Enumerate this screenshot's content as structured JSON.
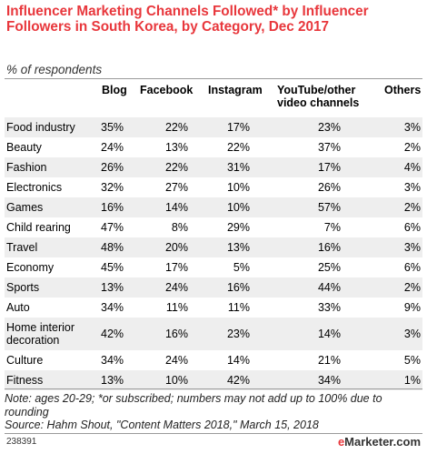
{
  "chart_data": {
    "type": "table",
    "title": "Influencer Marketing Channels Followed* by Influencer Followers in South Korea, by Category, Dec 2017",
    "subtitle": "% of respondents",
    "columns": [
      "Blog",
      "Facebook",
      "Instagram",
      "YouTube/other video channels",
      "Others"
    ],
    "rows": [
      {
        "category": "Food industry",
        "values": [
          "35%",
          "22%",
          "17%",
          "23%",
          "3%"
        ]
      },
      {
        "category": "Beauty",
        "values": [
          "24%",
          "13%",
          "22%",
          "37%",
          "2%"
        ]
      },
      {
        "category": "Fashion",
        "values": [
          "26%",
          "22%",
          "31%",
          "17%",
          "4%"
        ]
      },
      {
        "category": "Electronics",
        "values": [
          "32%",
          "27%",
          "10%",
          "26%",
          "3%"
        ]
      },
      {
        "category": "Games",
        "values": [
          "16%",
          "14%",
          "10%",
          "57%",
          "2%"
        ]
      },
      {
        "category": "Child rearing",
        "values": [
          "47%",
          "8%",
          "29%",
          "7%",
          "6%"
        ]
      },
      {
        "category": "Travel",
        "values": [
          "48%",
          "20%",
          "13%",
          "16%",
          "3%"
        ]
      },
      {
        "category": "Economy",
        "values": [
          "45%",
          "17%",
          "5%",
          "25%",
          "6%"
        ]
      },
      {
        "category": "Sports",
        "values": [
          "13%",
          "24%",
          "16%",
          "44%",
          "2%"
        ]
      },
      {
        "category": "Auto",
        "values": [
          "34%",
          "11%",
          "11%",
          "33%",
          "9%"
        ]
      },
      {
        "category": "Home interior decoration",
        "values": [
          "42%",
          "16%",
          "23%",
          "14%",
          "3%"
        ]
      },
      {
        "category": "Culture",
        "values": [
          "34%",
          "24%",
          "14%",
          "21%",
          "5%"
        ]
      },
      {
        "category": "Fitness",
        "values": [
          "13%",
          "10%",
          "42%",
          "34%",
          "1%"
        ]
      }
    ],
    "note": "Note: ages 20-29; *or subscribed; numbers may not add up to 100% due to rounding",
    "source": "Source: Hahm Shout, \"Content Matters 2018,\" March 15, 2018",
    "chart_id": "238391"
  },
  "brand": {
    "logo_prefix": "e",
    "logo_rest": "Marketer",
    "logo_suffix": ".com",
    "title_color": "#e8373c"
  }
}
